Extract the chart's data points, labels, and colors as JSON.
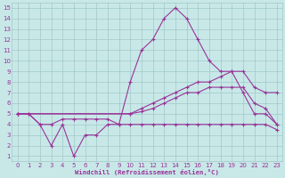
{
  "bg_color": "#c8e8e8",
  "grid_color": "#a0c8c8",
  "line_color": "#993399",
  "xlabel": "Windchill (Refroidissement éolien,°C)",
  "xlim": [
    -0.5,
    23.5
  ],
  "ylim": [
    0.5,
    15.5
  ],
  "xticks": [
    0,
    1,
    2,
    3,
    4,
    5,
    6,
    7,
    8,
    9,
    10,
    11,
    12,
    13,
    14,
    15,
    16,
    17,
    18,
    19,
    20,
    21,
    22,
    23
  ],
  "yticks": [
    1,
    2,
    3,
    4,
    5,
    6,
    7,
    8,
    9,
    10,
    11,
    12,
    13,
    14,
    15
  ],
  "series": [
    {
      "x": [
        0,
        1,
        2,
        3,
        4,
        5,
        6,
        7,
        8,
        9,
        10,
        11,
        12,
        13,
        14,
        15,
        16,
        17,
        18,
        19,
        20,
        21,
        22,
        23
      ],
      "y": [
        5,
        5,
        4,
        2,
        4,
        1,
        3,
        3,
        4,
        4,
        8,
        11,
        12,
        14,
        15,
        14,
        12,
        10,
        9,
        9,
        7,
        5,
        5,
        4
      ]
    },
    {
      "x": [
        0,
        1,
        2,
        3,
        4,
        5,
        6,
        7,
        8,
        9,
        10,
        11,
        12,
        13,
        14,
        15,
        16,
        17,
        18,
        19,
        20,
        21,
        22,
        23
      ],
      "y": [
        5,
        5,
        4,
        4,
        4.5,
        4.5,
        4.5,
        4.5,
        4.5,
        4,
        4,
        4,
        4,
        4,
        4,
        4,
        4,
        4,
        4,
        4,
        4,
        4,
        4,
        3.5
      ]
    },
    {
      "x": [
        0,
        10,
        11,
        12,
        13,
        14,
        15,
        16,
        17,
        18,
        19,
        20,
        21,
        22,
        23
      ],
      "y": [
        5,
        5,
        5.5,
        6,
        6.5,
        7,
        7.5,
        8,
        8,
        8.5,
        9,
        9,
        7.5,
        7,
        7
      ]
    },
    {
      "x": [
        0,
        10,
        11,
        12,
        13,
        14,
        15,
        16,
        17,
        18,
        19,
        20,
        21,
        22,
        23
      ],
      "y": [
        5,
        5,
        5.2,
        5.5,
        6,
        6.5,
        7,
        7,
        7.5,
        7.5,
        7.5,
        7.5,
        6,
        5.5,
        4
      ]
    }
  ]
}
